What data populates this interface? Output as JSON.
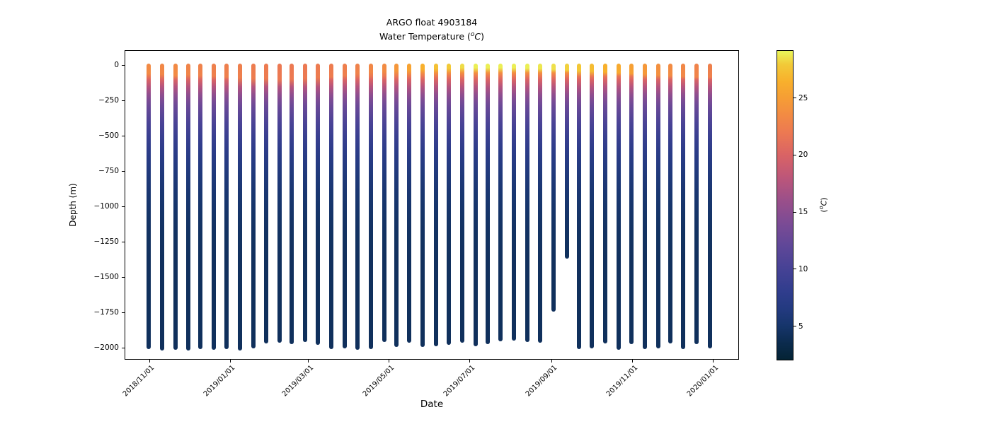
{
  "chart_data": {
    "type": "scatter",
    "title": "ARGO float 4903184",
    "subtitle": "Water Temperature (°C)",
    "subtitle_parts": {
      "prefix": "Water Temperature (",
      "sup": "o",
      "unit": "C",
      "suffix": ")"
    },
    "xlabel": "Date",
    "ylabel": "Depth (m)",
    "colorbar_label": "(°C)",
    "colorbar_label_parts": {
      "prefix": "(",
      "sup": "o",
      "unit": "C",
      "suffix": ")"
    },
    "grid": false,
    "legend": "colorbar-right",
    "x_tick_labels": [
      "2018/11/01",
      "2019/01/01",
      "2019/03/01",
      "2019/05/01",
      "2019/07/01",
      "2019/09/01",
      "2019/11/01",
      "2020/01/01"
    ],
    "y_ticks": [
      0,
      -250,
      -500,
      -750,
      -1000,
      -1250,
      -1500,
      -1750,
      -2000
    ],
    "y_tick_labels": [
      "0",
      "−250",
      "−500",
      "−750",
      "−1000",
      "−1250",
      "−1500",
      "−1750",
      "−2000"
    ],
    "ylim_m": [
      105,
      -2085
    ],
    "xlim_dates": [
      "2018/10/10",
      "2020/01/19"
    ],
    "colorbar_ticks": [
      5,
      10,
      15,
      20,
      25
    ],
    "temp_range_c": [
      2,
      29.2
    ],
    "colormap": "cmocean-thermal",
    "colormap_stops": [
      [
        2,
        "#042334"
      ],
      [
        3.5,
        "#0b2b4e"
      ],
      [
        5,
        "#16356b"
      ],
      [
        6.5,
        "#233a80"
      ],
      [
        8,
        "#303d8d"
      ],
      [
        10,
        "#464295"
      ],
      [
        12,
        "#5f4798"
      ],
      [
        14,
        "#7b4b95"
      ],
      [
        16,
        "#9a4f8a"
      ],
      [
        18,
        "#bc567a"
      ],
      [
        20,
        "#d96365"
      ],
      [
        22,
        "#ec7952"
      ],
      [
        23.5,
        "#f28a44"
      ],
      [
        25,
        "#f69d35"
      ],
      [
        26.5,
        "#f8b02c"
      ],
      [
        28,
        "#f2ca38"
      ],
      [
        29.2,
        "#e9f65b"
      ]
    ],
    "profile_fields": [
      "date",
      "max_depth_m",
      "surface_temp_c",
      "mixed_layer_m"
    ],
    "profiles": [
      [
        "2018/10/31",
        -1990,
        23.5,
        55
      ],
      [
        "2018/11/10",
        -2000,
        23.2,
        60
      ],
      [
        "2018/11/20",
        -1995,
        23.5,
        70
      ],
      [
        "2018/11/30",
        -2000,
        23.0,
        65
      ],
      [
        "2018/12/09",
        -1990,
        22.8,
        70
      ],
      [
        "2018/12/19",
        -1995,
        22.6,
        75
      ],
      [
        "2018/12/29",
        -1990,
        22.5,
        80
      ],
      [
        "2019/01/08",
        -2000,
        22.5,
        85
      ],
      [
        "2019/01/18",
        -1985,
        22.3,
        90
      ],
      [
        "2019/01/28",
        -1950,
        22.2,
        90
      ],
      [
        "2019/02/07",
        -1945,
        22.0,
        95
      ],
      [
        "2019/02/16",
        -1955,
        22.0,
        95
      ],
      [
        "2019/02/26",
        -1940,
        22.0,
        90
      ],
      [
        "2019/03/08",
        -1960,
        22.2,
        85
      ],
      [
        "2019/03/18",
        -1990,
        22.3,
        80
      ],
      [
        "2019/03/28",
        -1985,
        22.5,
        70
      ],
      [
        "2019/04/07",
        -1995,
        22.8,
        55
      ],
      [
        "2019/04/17",
        -1990,
        23.2,
        45
      ],
      [
        "2019/04/27",
        -1940,
        23.6,
        40
      ],
      [
        "2019/05/06",
        -1975,
        24.5,
        35
      ],
      [
        "2019/05/16",
        -1945,
        25.5,
        30
      ],
      [
        "2019/05/26",
        -1975,
        26.5,
        25
      ],
      [
        "2019/06/05",
        -1970,
        27.5,
        20
      ],
      [
        "2019/06/15",
        -1960,
        28.0,
        18
      ],
      [
        "2019/06/25",
        -1945,
        28.5,
        15
      ],
      [
        "2019/07/05",
        -1970,
        29.0,
        15
      ],
      [
        "2019/07/14",
        -1955,
        29.0,
        15
      ],
      [
        "2019/07/24",
        -1935,
        29.0,
        15
      ],
      [
        "2019/08/03",
        -1930,
        29.0,
        15
      ],
      [
        "2019/08/13",
        -1940,
        29.0,
        18
      ],
      [
        "2019/08/23",
        -1945,
        28.8,
        20
      ],
      [
        "2019/09/02",
        -1725,
        28.6,
        25
      ],
      [
        "2019/09/12",
        -1350,
        28.2,
        30
      ],
      [
        "2019/09/21",
        -1990,
        27.8,
        35
      ],
      [
        "2019/10/01",
        -1985,
        27.2,
        40
      ],
      [
        "2019/10/11",
        -1950,
        26.5,
        45
      ],
      [
        "2019/10/21",
        -1995,
        26.0,
        50
      ],
      [
        "2019/10/31",
        -1955,
        25.2,
        55
      ],
      [
        "2019/11/10",
        -1990,
        24.6,
        60
      ],
      [
        "2019/11/20",
        -1985,
        24.0,
        65
      ],
      [
        "2019/11/29",
        -1950,
        23.6,
        70
      ],
      [
        "2019/12/09",
        -1990,
        23.2,
        75
      ],
      [
        "2019/12/19",
        -1955,
        22.9,
        80
      ],
      [
        "2019/12/29",
        -1985,
        22.6,
        80
      ]
    ],
    "base_thermal_profile": [
      [
        30,
        26.0
      ],
      [
        50,
        24.0
      ],
      [
        75,
        21.8
      ],
      [
        100,
        20.0
      ],
      [
        150,
        17.5
      ],
      [
        200,
        15.5
      ],
      [
        250,
        13.8
      ],
      [
        300,
        12.5
      ],
      [
        400,
        10.4
      ],
      [
        500,
        8.8
      ],
      [
        600,
        7.5
      ],
      [
        700,
        6.6
      ],
      [
        800,
        5.9
      ],
      [
        900,
        5.4
      ],
      [
        1000,
        5.0
      ],
      [
        1100,
        4.7
      ],
      [
        1200,
        4.5
      ],
      [
        1400,
        4.3
      ],
      [
        1700,
        4.2
      ],
      [
        2000,
        4.2
      ]
    ]
  }
}
